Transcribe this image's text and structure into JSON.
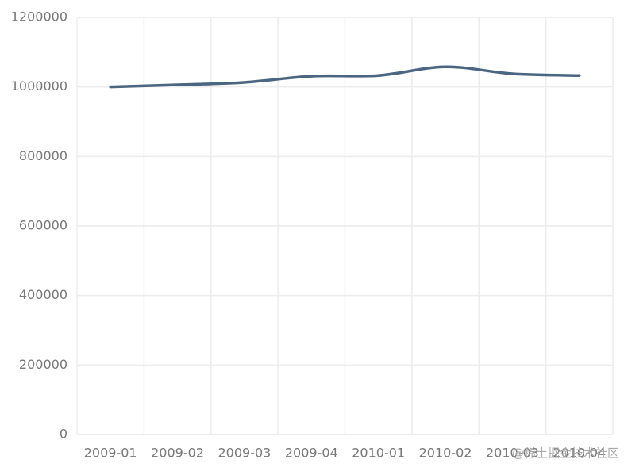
{
  "chart_data": {
    "type": "line",
    "categories": [
      "2009-01",
      "2009-02",
      "2009-03",
      "2009-04",
      "2010-01",
      "2010-02",
      "2010-03",
      "2010-04"
    ],
    "series": [
      {
        "color": "#4b6680",
        "values": [
          1000000,
          1006000,
          1013000,
          1031000,
          1033000,
          1058000,
          1038000,
          1033000
        ]
      }
    ],
    "ylim": [
      0,
      1200000
    ],
    "yticks": [
      0,
      200000,
      400000,
      600000,
      800000,
      1000000,
      1200000
    ],
    "grid": true,
    "smooth": true,
    "watermark": "@稀土掘金技术社区"
  }
}
